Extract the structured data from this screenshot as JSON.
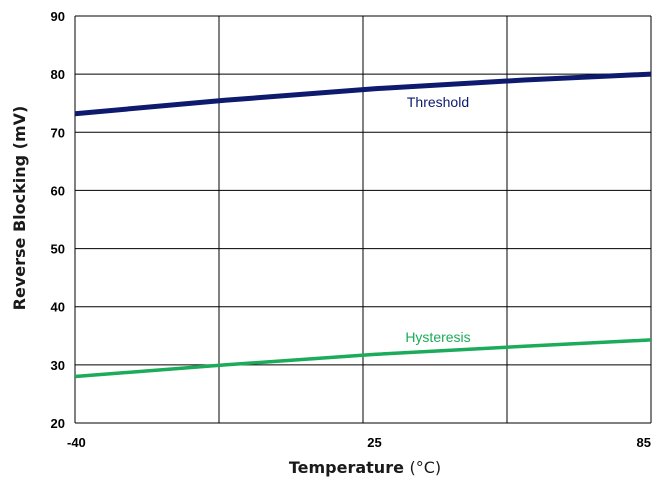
{
  "chart_data": {
    "type": "line",
    "title": "",
    "xlabel": "Temperature (°C)",
    "xlabel_parts": {
      "main": "Temperature ",
      "unit": "(°C)"
    },
    "ylabel": "Reverse Blocking  (mV)",
    "xlim": [
      -40,
      85
    ],
    "ylim": [
      20,
      90
    ],
    "x_ticks": [
      -40,
      25,
      85
    ],
    "y_ticks": [
      20,
      30,
      40,
      50,
      60,
      70,
      80,
      90
    ],
    "grid": true,
    "legend": "inline labels",
    "series": [
      {
        "name": "Threshold",
        "color": "#0d1a6e",
        "x": [
          -40,
          -7.5,
          25,
          57.5,
          85
        ],
        "y": [
          73.2,
          75.5,
          77.5,
          79.0,
          80.0
        ]
      },
      {
        "name": "Hysteresis",
        "color": "#1bab5a",
        "x": [
          -40,
          -7.5,
          25,
          57.5,
          85
        ],
        "y": [
          28.0,
          30.0,
          31.8,
          33.2,
          34.3
        ]
      }
    ]
  }
}
